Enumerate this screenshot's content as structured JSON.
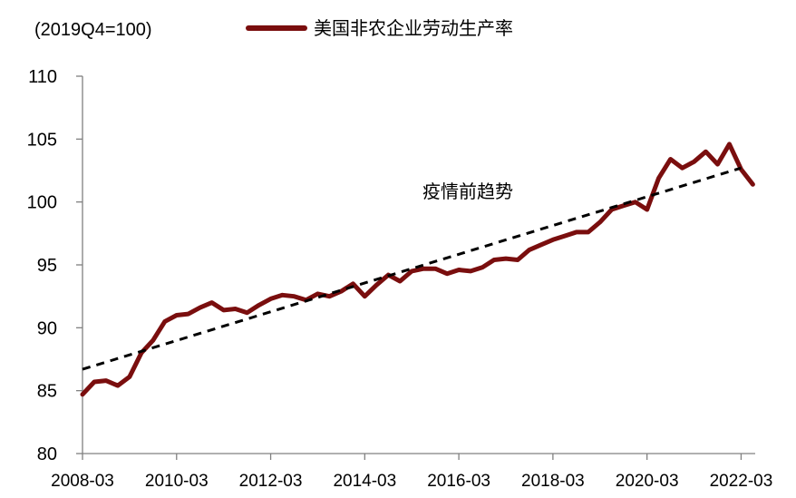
{
  "chart_data": {
    "type": "line",
    "unit_label": "(2019Q4=100)",
    "colors": {
      "series": "#7a0e0e",
      "trend": "#000000",
      "axis": "#808080"
    },
    "ylim": [
      80,
      110
    ],
    "yticks": [
      "80",
      "85",
      "90",
      "95",
      "100",
      "105",
      "110"
    ],
    "xticks": [
      "2008-03",
      "2010-03",
      "2012-03",
      "2014-03",
      "2016-03",
      "2018-03",
      "2020-03",
      "2022-03"
    ],
    "series": [
      {
        "name": "美国非农企业劳动生产率",
        "style": "solid",
        "x": [
          "2008-03",
          "2008-06",
          "2008-09",
          "2008-12",
          "2009-03",
          "2009-06",
          "2009-09",
          "2009-12",
          "2010-03",
          "2010-06",
          "2010-09",
          "2010-12",
          "2011-03",
          "2011-06",
          "2011-09",
          "2011-12",
          "2012-03",
          "2012-06",
          "2012-09",
          "2012-12",
          "2013-03",
          "2013-06",
          "2013-09",
          "2013-12",
          "2014-03",
          "2014-06",
          "2014-09",
          "2014-12",
          "2015-03",
          "2015-06",
          "2015-09",
          "2015-12",
          "2016-03",
          "2016-06",
          "2016-09",
          "2016-12",
          "2017-03",
          "2017-06",
          "2017-09",
          "2017-12",
          "2018-03",
          "2018-06",
          "2018-09",
          "2018-12",
          "2019-03",
          "2019-06",
          "2019-09",
          "2019-12",
          "2020-03",
          "2020-06",
          "2020-09",
          "2020-12",
          "2021-03",
          "2021-06",
          "2021-09",
          "2021-12",
          "2022-03",
          "2022-06"
        ],
        "values": [
          84.7,
          85.7,
          85.8,
          85.4,
          86.1,
          88.0,
          89.0,
          90.5,
          91.0,
          91.1,
          91.6,
          92.0,
          91.4,
          91.5,
          91.2,
          91.8,
          92.3,
          92.6,
          92.5,
          92.2,
          92.7,
          92.5,
          92.9,
          93.5,
          92.5,
          93.4,
          94.2,
          93.7,
          94.5,
          94.7,
          94.7,
          94.3,
          94.6,
          94.5,
          94.8,
          95.4,
          95.5,
          95.4,
          96.2,
          96.6,
          97.0,
          97.3,
          97.6,
          97.6,
          98.4,
          99.4,
          99.7,
          100.0,
          99.4,
          101.9,
          103.4,
          102.7,
          103.2,
          104.0,
          103.0,
          104.6,
          102.6,
          101.4
        ]
      },
      {
        "name": "",
        "style": "dashed",
        "x": [
          "2008-03",
          "2022-03"
        ],
        "values": [
          86.7,
          102.7
        ]
      }
    ],
    "annotations": [
      {
        "text": "疫情前趋势",
        "x": "2016-09",
        "y": 101.0
      }
    ],
    "legend": {
      "position": "top"
    },
    "grid": false
  }
}
